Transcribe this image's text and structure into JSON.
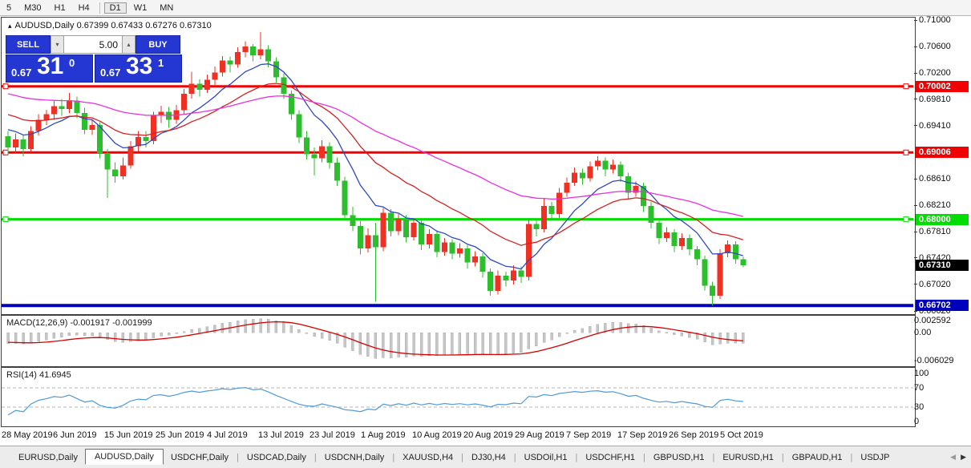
{
  "colors": {
    "up": "#ef3124",
    "down": "#2cbe2c",
    "ma_fast": "#3048c0",
    "ma_mid": "#d42222",
    "ma_slow": "#e832dc",
    "macd_hist": "#c6c6c6",
    "macd_signal": "#d40000",
    "rsi_line": "#4f9bd5",
    "hline_red": "#f00000",
    "hline_green": "#00dd00",
    "hline_blue": "#0000bb",
    "current_box": "#000000",
    "panel_blue": "#2537d2"
  },
  "icons": {
    "collapse": "▴",
    "spin_up": "▴",
    "spin_down": "▾",
    "tab_left": "◀",
    "tab_right": "▶"
  },
  "toolbar": {
    "timeframes": [
      "5",
      "M30",
      "H1",
      "H4",
      "D1",
      "W1",
      "MN"
    ],
    "active": "D1"
  },
  "chart": {
    "title": "AUDUSD,Daily",
    "ohlc": "0.67399 0.67433 0.67276 0.67310"
  },
  "trade_panel": {
    "sell_label": "SELL",
    "buy_label": "BUY",
    "volume": "5.00",
    "sell_price": {
      "prefix": "0.67",
      "big": "31",
      "sup": "0"
    },
    "buy_price": {
      "prefix": "0.67",
      "big": "33",
      "sup": "1"
    }
  },
  "price_axis": {
    "ticks": [
      "0.71000",
      "0.70600",
      "0.70200",
      "0.69810",
      "0.69410",
      "0.68610",
      "0.68210",
      "0.67810",
      "0.67420",
      "0.67020",
      "0.66620"
    ],
    "line_labels": [
      {
        "text": "0.70002",
        "color": "#f00000"
      },
      {
        "text": "0.69006",
        "color": "#f00000"
      },
      {
        "text": "0.68000",
        "color": "#00dd00"
      },
      {
        "text": "0.66702",
        "color": "#0000bb"
      }
    ],
    "current": {
      "text": "0.67310",
      "color": "#000000"
    }
  },
  "macd_panel": {
    "label": "MACD(12,26,9)",
    "values": "-0.001917 -0.001999",
    "axis": [
      "0.002592",
      "0.00",
      "-0.006029"
    ],
    "params": {
      "fast": 12,
      "slow": 26,
      "signal": 9
    }
  },
  "rsi_panel": {
    "label": "RSI(14)",
    "value": "41.6945",
    "axis": [
      "100",
      "70",
      "30",
      "0"
    ],
    "levels": [
      70,
      30
    ],
    "period": 14
  },
  "date_axis": {
    "labels": [
      "28 May 2019",
      "6 Jun 2019",
      "15 Jun 2019",
      "25 Jun 2019",
      "4 Jul 2019",
      "13 Jul 2019",
      "23 Jul 2019",
      "1 Aug 2019",
      "10 Aug 2019",
      "20 Aug 2019",
      "29 Aug 2019",
      "7 Sep 2019",
      "17 Sep 2019",
      "26 Sep 2019",
      "5 Oct 2019"
    ]
  },
  "tabs": {
    "items": [
      {
        "label": "EURUSD,Daily",
        "active": false
      },
      {
        "label": "AUDUSD,Daily",
        "active": true
      },
      {
        "label": "USDCHF,Daily",
        "active": false
      },
      {
        "label": "USDCAD,Daily",
        "active": false
      },
      {
        "label": "USDCNH,Daily",
        "active": false
      },
      {
        "label": "XAUUSD,H4",
        "active": false
      },
      {
        "label": "DJ30,H4",
        "active": false
      },
      {
        "label": "USDOil,H1",
        "active": false
      },
      {
        "label": "USDCHF,H1",
        "active": false
      },
      {
        "label": "GBPUSD,H1",
        "active": false
      },
      {
        "label": "EURUSD,H1",
        "active": false
      },
      {
        "label": "GBPAUD,H1",
        "active": false
      },
      {
        "label": "USDJP",
        "active": false
      }
    ]
  },
  "chart_data": {
    "type": "candlestick",
    "symbol": "AUDUSD",
    "timeframe": "Daily",
    "ylim": [
      0.666,
      0.7106
    ],
    "hlines": [
      {
        "price": 0.70002,
        "color_key": "hline_red",
        "width": 3,
        "handles": true
      },
      {
        "price": 0.69006,
        "color_key": "hline_red",
        "width": 3,
        "handles": true
      },
      {
        "price": 0.68,
        "color_key": "hline_green",
        "width": 3,
        "handles": true
      },
      {
        "price": 0.66702,
        "color_key": "hline_blue",
        "width": 4,
        "handles": false
      }
    ],
    "moving_averages": [
      {
        "period": 9,
        "color_key": "ma_fast"
      },
      {
        "period": 21,
        "color_key": "ma_mid"
      },
      {
        "period": 52,
        "color_key": "ma_slow"
      }
    ],
    "warmup_closes": [
      0.7035,
      0.7028,
      0.702,
      0.7012,
      0.7005,
      0.6998,
      0.699,
      0.6996,
      0.6987,
      0.6979,
      0.6983,
      0.6975,
      0.6968,
      0.6972,
      0.6964,
      0.6956,
      0.696,
      0.6952,
      0.6945,
      0.6949,
      0.6941,
      0.6935,
      0.6939,
      0.6931,
      0.6925
    ],
    "candles": [
      [
        0.6925,
        0.6933,
        0.6898,
        0.6908
      ],
      [
        0.6908,
        0.6929,
        0.69,
        0.692
      ],
      [
        0.692,
        0.6926,
        0.6895,
        0.6906
      ],
      [
        0.6906,
        0.694,
        0.6901,
        0.6933
      ],
      [
        0.6933,
        0.6958,
        0.6926,
        0.695
      ],
      [
        0.695,
        0.6965,
        0.6942,
        0.6958
      ],
      [
        0.6958,
        0.6978,
        0.695,
        0.697
      ],
      [
        0.697,
        0.6981,
        0.6956,
        0.6966
      ],
      [
        0.6966,
        0.699,
        0.696,
        0.6979
      ],
      [
        0.6979,
        0.6985,
        0.6952,
        0.696
      ],
      [
        0.696,
        0.6968,
        0.6928,
        0.6935
      ],
      [
        0.6935,
        0.6951,
        0.6927,
        0.6942
      ],
      [
        0.6942,
        0.6946,
        0.6892,
        0.69
      ],
      [
        0.69,
        0.6906,
        0.6832,
        0.6875
      ],
      [
        0.6875,
        0.6886,
        0.6855,
        0.6865
      ],
      [
        0.6865,
        0.6893,
        0.686,
        0.6881
      ],
      [
        0.6881,
        0.6918,
        0.6876,
        0.691
      ],
      [
        0.691,
        0.6933,
        0.6902,
        0.6924
      ],
      [
        0.6924,
        0.6933,
        0.6908,
        0.6918
      ],
      [
        0.6918,
        0.6962,
        0.6913,
        0.6956
      ],
      [
        0.6956,
        0.6971,
        0.6945,
        0.6962
      ],
      [
        0.6962,
        0.6969,
        0.6938,
        0.695
      ],
      [
        0.695,
        0.6972,
        0.6944,
        0.6964
      ],
      [
        0.6964,
        0.6996,
        0.6958,
        0.6989
      ],
      [
        0.6989,
        0.7022,
        0.6982,
        0.7004
      ],
      [
        0.7004,
        0.7011,
        0.6985,
        0.6995
      ],
      [
        0.6995,
        0.7018,
        0.699,
        0.701
      ],
      [
        0.701,
        0.703,
        0.7002,
        0.7021
      ],
      [
        0.7021,
        0.7046,
        0.7015,
        0.7039
      ],
      [
        0.7039,
        0.7045,
        0.7021,
        0.7033
      ],
      [
        0.7033,
        0.7059,
        0.7028,
        0.7052
      ],
      [
        0.7052,
        0.7068,
        0.7044,
        0.706
      ],
      [
        0.706,
        0.7064,
        0.7038,
        0.7047
      ],
      [
        0.7047,
        0.7082,
        0.7041,
        0.7056
      ],
      [
        0.7056,
        0.7062,
        0.7029,
        0.7038
      ],
      [
        0.7038,
        0.7044,
        0.7006,
        0.7014
      ],
      [
        0.7014,
        0.702,
        0.6981,
        0.6989
      ],
      [
        0.6989,
        0.6994,
        0.695,
        0.6958
      ],
      [
        0.6958,
        0.6964,
        0.6915,
        0.6923
      ],
      [
        0.6923,
        0.6933,
        0.689,
        0.6898
      ],
      [
        0.6898,
        0.6908,
        0.6866,
        0.6892
      ],
      [
        0.6892,
        0.6919,
        0.6886,
        0.691
      ],
      [
        0.691,
        0.6916,
        0.6876,
        0.6885
      ],
      [
        0.6885,
        0.6893,
        0.685,
        0.6858
      ],
      [
        0.6858,
        0.6864,
        0.68,
        0.6806
      ],
      [
        0.6806,
        0.6819,
        0.6782,
        0.679
      ],
      [
        0.679,
        0.6798,
        0.6747,
        0.6756
      ],
      [
        0.6756,
        0.6786,
        0.675,
        0.6776
      ],
      [
        0.6776,
        0.6795,
        0.6676,
        0.6758
      ],
      [
        0.6758,
        0.6817,
        0.6752,
        0.681
      ],
      [
        0.681,
        0.6815,
        0.6774,
        0.6782
      ],
      [
        0.6782,
        0.6808,
        0.6776,
        0.6801
      ],
      [
        0.6801,
        0.6806,
        0.6765,
        0.6773
      ],
      [
        0.6773,
        0.6801,
        0.6768,
        0.6795
      ],
      [
        0.6795,
        0.68,
        0.6754,
        0.6762
      ],
      [
        0.6762,
        0.6785,
        0.6756,
        0.6778
      ],
      [
        0.6778,
        0.6783,
        0.6743,
        0.6751
      ],
      [
        0.6751,
        0.6772,
        0.6745,
        0.6765
      ],
      [
        0.6765,
        0.677,
        0.674,
        0.6748
      ],
      [
        0.6748,
        0.6764,
        0.6742,
        0.6756
      ],
      [
        0.6756,
        0.6761,
        0.6726,
        0.6735
      ],
      [
        0.6735,
        0.6752,
        0.6729,
        0.6744
      ],
      [
        0.6744,
        0.6749,
        0.6712,
        0.6721
      ],
      [
        0.6721,
        0.6726,
        0.6685,
        0.6692
      ],
      [
        0.6692,
        0.6723,
        0.6687,
        0.6715
      ],
      [
        0.6715,
        0.6721,
        0.6699,
        0.6708
      ],
      [
        0.6708,
        0.6731,
        0.6702,
        0.6723
      ],
      [
        0.6723,
        0.6729,
        0.6704,
        0.6713
      ],
      [
        0.6713,
        0.68,
        0.6708,
        0.6793
      ],
      [
        0.6793,
        0.6801,
        0.6774,
        0.6785
      ],
      [
        0.6785,
        0.6832,
        0.678,
        0.682
      ],
      [
        0.682,
        0.6826,
        0.6798,
        0.6808
      ],
      [
        0.6808,
        0.6847,
        0.6802,
        0.684
      ],
      [
        0.684,
        0.6863,
        0.6834,
        0.6855
      ],
      [
        0.6855,
        0.6878,
        0.685,
        0.687
      ],
      [
        0.687,
        0.6876,
        0.6852,
        0.6862
      ],
      [
        0.6862,
        0.6887,
        0.6857,
        0.688
      ],
      [
        0.688,
        0.6895,
        0.6874,
        0.6888
      ],
      [
        0.6888,
        0.6893,
        0.6865,
        0.6875
      ],
      [
        0.6875,
        0.689,
        0.6869,
        0.6882
      ],
      [
        0.6882,
        0.6887,
        0.6856,
        0.6865
      ],
      [
        0.6865,
        0.687,
        0.6831,
        0.684
      ],
      [
        0.684,
        0.6857,
        0.6834,
        0.685
      ],
      [
        0.685,
        0.6855,
        0.6811,
        0.682
      ],
      [
        0.682,
        0.6826,
        0.6786,
        0.6795
      ],
      [
        0.6795,
        0.68,
        0.6763,
        0.6772
      ],
      [
        0.6772,
        0.6788,
        0.6766,
        0.678
      ],
      [
        0.678,
        0.6785,
        0.6751,
        0.676
      ],
      [
        0.676,
        0.6779,
        0.6754,
        0.6772
      ],
      [
        0.6772,
        0.6777,
        0.6746,
        0.6755
      ],
      [
        0.6755,
        0.676,
        0.6731,
        0.674
      ],
      [
        0.674,
        0.6745,
        0.6693,
        0.67
      ],
      [
        0.67,
        0.6706,
        0.667,
        0.6685
      ],
      [
        0.6685,
        0.6755,
        0.668,
        0.6749
      ],
      [
        0.6749,
        0.6768,
        0.6743,
        0.6762
      ],
      [
        0.6762,
        0.6767,
        0.6733,
        0.674
      ],
      [
        0.67399,
        0.67433,
        0.67276,
        0.6731
      ]
    ]
  }
}
